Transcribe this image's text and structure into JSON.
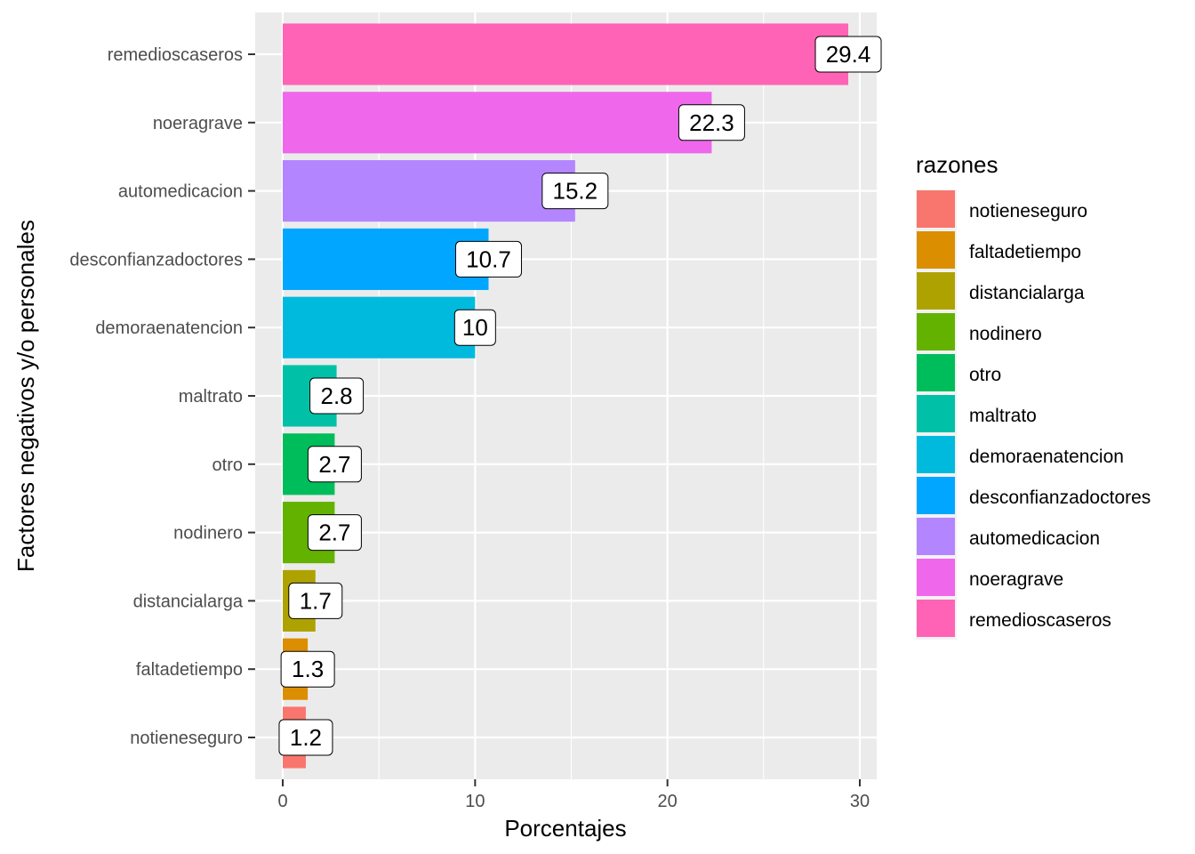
{
  "chart_data": {
    "type": "bar",
    "orientation": "horizontal",
    "title": "",
    "xlabel": "Porcentajes",
    "ylabel": "Factores negativos y/o personales",
    "xlim": [
      -1.45,
      30.9
    ],
    "xticks": [
      0,
      10,
      20,
      30
    ],
    "xtick_labels": [
      "0",
      "10",
      "20",
      "30"
    ],
    "grid": true,
    "categories": [
      "notieneseguro",
      "faltadetiempo",
      "distancialarga",
      "nodinero",
      "otro",
      "maltrato",
      "demoraenatencion",
      "desconfianzadoctores",
      "automedicacion",
      "noeragrave",
      "remedioscaseros"
    ],
    "values": [
      1.2,
      1.3,
      1.7,
      2.7,
      2.7,
      2.8,
      10,
      10.7,
      15.2,
      22.3,
      29.4
    ],
    "data_labels": [
      "1.2",
      "1.3",
      "1.7",
      "2.7",
      "2.7",
      "2.8",
      "10",
      "10.7",
      "15.2",
      "22.3",
      "29.4"
    ],
    "colors": [
      "#F8766D",
      "#DB8E00",
      "#AEA200",
      "#64B200",
      "#00BD5C",
      "#00C1A7",
      "#00BADE",
      "#00A6FF",
      "#B385FF",
      "#EF67EB",
      "#FF63B6"
    ],
    "legend": {
      "title": "razones",
      "position": "right",
      "entries": [
        "notieneseguro",
        "faltadetiempo",
        "distancialarga",
        "nodinero",
        "otro",
        "maltrato",
        "demoraenatencion",
        "desconfianzadoctores",
        "automedicacion",
        "noeragrave",
        "remedioscaseros"
      ]
    }
  },
  "style": {
    "panel_background": "#EBEBEB",
    "grid_color": "#FFFFFF",
    "tick_color": "#333333",
    "label_box_border": "#000000",
    "label_box_fill": "#FFFFFF"
  }
}
